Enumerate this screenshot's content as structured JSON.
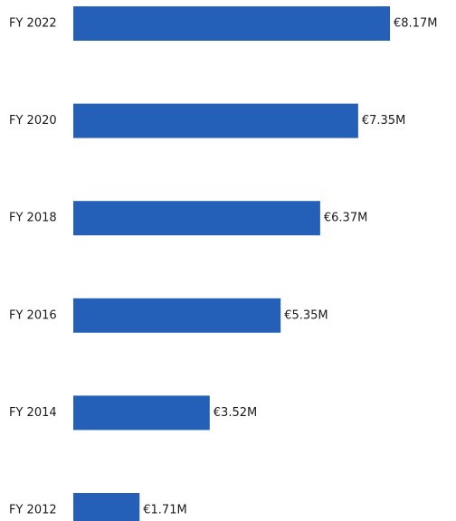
{
  "chart_data": {
    "type": "bar",
    "orientation": "horizontal",
    "categories": [
      "FY 2022",
      "FY 2020",
      "FY 2018",
      "FY 2016",
      "FY 2014",
      "FY 2012"
    ],
    "values": [
      8.17,
      7.35,
      6.37,
      5.35,
      3.52,
      1.71
    ],
    "value_labels": [
      "€8.17M",
      "€7.35M",
      "€6.37M",
      "€5.35M",
      "€3.52M",
      "€1.71M"
    ],
    "xlim": [
      0,
      8.17
    ],
    "grid": false,
    "bar_color": "#2560B8"
  }
}
